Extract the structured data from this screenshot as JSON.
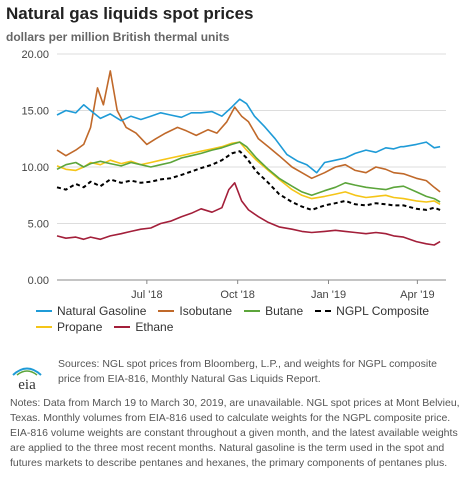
{
  "header": {
    "title": "Natural gas liquids spot prices",
    "subtitle": "dollars per million British thermal units"
  },
  "colors": {
    "natural_gasoline": "#1f9bd7",
    "isobutane": "#c0692a",
    "butane": "#5ca53b",
    "ngpl_composite": "#000000",
    "propane": "#f5c518",
    "ethane": "#a31f3a",
    "grid": "#dddddd",
    "axis": "#888888"
  },
  "footer": {
    "logo_text": "eia",
    "sources": "Sources: NGL spot prices from Bloomberg, L.P., and weights for NGPL composite price from EIA-816, Monthly Natural Gas Liquids Report.",
    "notes": "Notes: Data from March 19 to March 30, 2019, are unavailable. NGL spot prices at Mont Belvieu, Texas. Monthly volumes from EIA-816 used to calculate weights for the NGPL composite price. EIA-816 volume weights are constant throughout a given month, and the latest available weights are applied to the three most recent months. Natural gasoline is the term used in the spot and futures markets to describe pentanes and hexanes, the primary components of pentanes plus."
  },
  "chart_data": {
    "type": "line",
    "title": "Natural gas liquids spot prices",
    "ylabel": "dollars per million British thermal units",
    "ylim": [
      0,
      20
    ],
    "yticks": [
      "0.00",
      "5.00",
      "10.00",
      "15.00",
      "20.00"
    ],
    "xlim": [
      "2018-04-01",
      "2019-04-30"
    ],
    "xticks": [
      {
        "label": "Jul '18",
        "date": "2018-07-01"
      },
      {
        "label": "Oct '18",
        "date": "2018-10-01"
      },
      {
        "label": "Jan '19",
        "date": "2019-01-01"
      },
      {
        "label": "Apr '19",
        "date": "2019-04-01"
      }
    ],
    "grid": "horizontal",
    "legend_position": "bottom",
    "series": [
      {
        "name": "Natural Gasoline",
        "key": "natural_gasoline",
        "dashed": false,
        "points": [
          [
            "2018-04-01",
            14.6
          ],
          [
            "2018-04-10",
            15.0
          ],
          [
            "2018-04-20",
            14.8
          ],
          [
            "2018-04-28",
            15.5
          ],
          [
            "2018-05-05",
            15.0
          ],
          [
            "2018-05-15",
            14.3
          ],
          [
            "2018-05-25",
            14.7
          ],
          [
            "2018-06-05",
            14.1
          ],
          [
            "2018-06-15",
            14.5
          ],
          [
            "2018-06-25",
            14.2
          ],
          [
            "2018-07-05",
            14.5
          ],
          [
            "2018-07-15",
            14.8
          ],
          [
            "2018-07-25",
            14.6
          ],
          [
            "2018-08-05",
            14.4
          ],
          [
            "2018-08-15",
            14.8
          ],
          [
            "2018-08-25",
            14.8
          ],
          [
            "2018-09-05",
            14.9
          ],
          [
            "2018-09-15",
            14.5
          ],
          [
            "2018-09-25",
            15.3
          ],
          [
            "2018-10-03",
            16.0
          ],
          [
            "2018-10-10",
            15.6
          ],
          [
            "2018-10-18",
            14.5
          ],
          [
            "2018-10-28",
            13.6
          ],
          [
            "2018-11-08",
            12.5
          ],
          [
            "2018-11-20",
            11.1
          ],
          [
            "2018-12-01",
            10.5
          ],
          [
            "2018-12-10",
            10.2
          ],
          [
            "2018-12-20",
            9.5
          ],
          [
            "2018-12-28",
            10.4
          ],
          [
            "2019-01-08",
            10.6
          ],
          [
            "2019-01-18",
            10.8
          ],
          [
            "2019-01-28",
            11.2
          ],
          [
            "2019-02-08",
            11.5
          ],
          [
            "2019-02-18",
            11.3
          ],
          [
            "2019-02-28",
            11.7
          ],
          [
            "2019-03-08",
            11.6
          ],
          [
            "2019-03-15",
            11.8
          ],
          [
            "2019-03-18",
            11.8
          ],
          [
            "2019-03-31",
            12.0
          ],
          [
            "2019-04-10",
            12.2
          ],
          [
            "2019-04-18",
            11.7
          ],
          [
            "2019-04-24",
            11.8
          ]
        ]
      },
      {
        "name": "Isobutane",
        "key": "isobutane",
        "dashed": false,
        "points": [
          [
            "2018-04-01",
            11.5
          ],
          [
            "2018-04-10",
            11.0
          ],
          [
            "2018-04-20",
            11.5
          ],
          [
            "2018-04-28",
            12.0
          ],
          [
            "2018-05-05",
            13.5
          ],
          [
            "2018-05-12",
            17.0
          ],
          [
            "2018-05-18",
            15.5
          ],
          [
            "2018-05-25",
            18.5
          ],
          [
            "2018-06-01",
            15.0
          ],
          [
            "2018-06-10",
            13.5
          ],
          [
            "2018-06-20",
            13.0
          ],
          [
            "2018-07-01",
            12.0
          ],
          [
            "2018-07-10",
            12.5
          ],
          [
            "2018-07-20",
            13.0
          ],
          [
            "2018-08-01",
            13.5
          ],
          [
            "2018-08-10",
            13.2
          ],
          [
            "2018-08-20",
            12.8
          ],
          [
            "2018-09-01",
            13.3
          ],
          [
            "2018-09-10",
            13.0
          ],
          [
            "2018-09-20",
            14.0
          ],
          [
            "2018-09-28",
            15.3
          ],
          [
            "2018-10-05",
            14.5
          ],
          [
            "2018-10-12",
            14.0
          ],
          [
            "2018-10-22",
            12.5
          ],
          [
            "2018-11-01",
            11.8
          ],
          [
            "2018-11-12",
            11.0
          ],
          [
            "2018-11-25",
            10.0
          ],
          [
            "2018-12-05",
            9.5
          ],
          [
            "2018-12-15",
            9.0
          ],
          [
            "2018-12-28",
            9.5
          ],
          [
            "2019-01-08",
            10.0
          ],
          [
            "2019-01-18",
            10.2
          ],
          [
            "2019-01-28",
            9.7
          ],
          [
            "2019-02-08",
            9.5
          ],
          [
            "2019-02-18",
            10.0
          ],
          [
            "2019-02-28",
            9.8
          ],
          [
            "2019-03-08",
            9.5
          ],
          [
            "2019-03-18",
            9.4
          ],
          [
            "2019-03-31",
            9.0
          ],
          [
            "2019-04-10",
            8.8
          ],
          [
            "2019-04-18",
            8.2
          ],
          [
            "2019-04-24",
            7.8
          ]
        ]
      },
      {
        "name": "Butane",
        "key": "butane",
        "dashed": false,
        "points": [
          [
            "2018-04-01",
            9.8
          ],
          [
            "2018-04-10",
            10.2
          ],
          [
            "2018-04-20",
            10.4
          ],
          [
            "2018-04-28",
            10.0
          ],
          [
            "2018-05-05",
            10.3
          ],
          [
            "2018-05-15",
            10.5
          ],
          [
            "2018-05-25",
            10.3
          ],
          [
            "2018-06-05",
            10.1
          ],
          [
            "2018-06-15",
            10.4
          ],
          [
            "2018-06-25",
            10.2
          ],
          [
            "2018-07-05",
            10.0
          ],
          [
            "2018-07-15",
            10.2
          ],
          [
            "2018-07-25",
            10.4
          ],
          [
            "2018-08-05",
            10.8
          ],
          [
            "2018-08-15",
            11.0
          ],
          [
            "2018-08-25",
            11.2
          ],
          [
            "2018-09-05",
            11.5
          ],
          [
            "2018-09-15",
            11.7
          ],
          [
            "2018-09-25",
            12.0
          ],
          [
            "2018-10-03",
            12.2
          ],
          [
            "2018-10-10",
            11.8
          ],
          [
            "2018-10-20",
            10.8
          ],
          [
            "2018-11-01",
            9.8
          ],
          [
            "2018-11-12",
            9.0
          ],
          [
            "2018-11-25",
            8.3
          ],
          [
            "2018-12-05",
            7.8
          ],
          [
            "2018-12-15",
            7.5
          ],
          [
            "2018-12-28",
            7.9
          ],
          [
            "2019-01-08",
            8.2
          ],
          [
            "2019-01-18",
            8.6
          ],
          [
            "2019-01-28",
            8.4
          ],
          [
            "2019-02-08",
            8.2
          ],
          [
            "2019-02-18",
            8.1
          ],
          [
            "2019-02-28",
            8.0
          ],
          [
            "2019-03-08",
            8.2
          ],
          [
            "2019-03-18",
            8.3
          ],
          [
            "2019-03-31",
            7.8
          ],
          [
            "2019-04-10",
            7.4
          ],
          [
            "2019-04-18",
            7.2
          ],
          [
            "2019-04-24",
            6.9
          ]
        ]
      },
      {
        "name": "NGPL Composite",
        "key": "ngpl_composite",
        "dashed": true,
        "points": [
          [
            "2018-04-01",
            8.2
          ],
          [
            "2018-04-10",
            8.0
          ],
          [
            "2018-04-20",
            8.5
          ],
          [
            "2018-04-28",
            8.2
          ],
          [
            "2018-05-05",
            8.7
          ],
          [
            "2018-05-15",
            8.3
          ],
          [
            "2018-05-25",
            8.9
          ],
          [
            "2018-06-05",
            8.6
          ],
          [
            "2018-06-15",
            8.8
          ],
          [
            "2018-06-25",
            8.6
          ],
          [
            "2018-07-05",
            8.7
          ],
          [
            "2018-07-15",
            8.9
          ],
          [
            "2018-07-25",
            9.0
          ],
          [
            "2018-08-05",
            9.3
          ],
          [
            "2018-08-15",
            9.6
          ],
          [
            "2018-08-25",
            9.9
          ],
          [
            "2018-09-05",
            10.2
          ],
          [
            "2018-09-15",
            10.6
          ],
          [
            "2018-09-25",
            11.2
          ],
          [
            "2018-10-03",
            11.4
          ],
          [
            "2018-10-10",
            10.8
          ],
          [
            "2018-10-20",
            9.6
          ],
          [
            "2018-11-01",
            8.6
          ],
          [
            "2018-11-12",
            7.6
          ],
          [
            "2018-11-25",
            6.9
          ],
          [
            "2018-12-05",
            6.5
          ],
          [
            "2018-12-15",
            6.2
          ],
          [
            "2018-12-28",
            6.6
          ],
          [
            "2019-01-08",
            6.8
          ],
          [
            "2019-01-18",
            7.0
          ],
          [
            "2019-01-28",
            6.7
          ],
          [
            "2019-02-08",
            6.6
          ],
          [
            "2019-02-18",
            6.8
          ],
          [
            "2019-02-28",
            6.7
          ],
          [
            "2019-03-08",
            6.6
          ],
          [
            "2019-03-18",
            6.6
          ],
          [
            "2019-03-31",
            6.3
          ],
          [
            "2019-04-10",
            6.2
          ],
          [
            "2019-04-18",
            6.4
          ],
          [
            "2019-04-24",
            6.2
          ]
        ]
      },
      {
        "name": "Propane",
        "key": "propane",
        "dashed": false,
        "points": [
          [
            "2018-04-01",
            10.1
          ],
          [
            "2018-04-10",
            9.8
          ],
          [
            "2018-04-20",
            9.7
          ],
          [
            "2018-04-28",
            10.0
          ],
          [
            "2018-05-05",
            10.4
          ],
          [
            "2018-05-15",
            10.2
          ],
          [
            "2018-05-25",
            10.6
          ],
          [
            "2018-06-05",
            10.3
          ],
          [
            "2018-06-15",
            10.5
          ],
          [
            "2018-06-25",
            10.2
          ],
          [
            "2018-07-05",
            10.4
          ],
          [
            "2018-07-15",
            10.6
          ],
          [
            "2018-07-25",
            10.8
          ],
          [
            "2018-08-05",
            11.0
          ],
          [
            "2018-08-15",
            11.2
          ],
          [
            "2018-08-25",
            11.4
          ],
          [
            "2018-09-05",
            11.6
          ],
          [
            "2018-09-15",
            11.8
          ],
          [
            "2018-09-25",
            12.1
          ],
          [
            "2018-10-03",
            12.2
          ],
          [
            "2018-10-10",
            11.5
          ],
          [
            "2018-10-20",
            10.6
          ],
          [
            "2018-11-01",
            9.7
          ],
          [
            "2018-11-12",
            8.9
          ],
          [
            "2018-11-25",
            8.0
          ],
          [
            "2018-12-05",
            7.5
          ],
          [
            "2018-12-15",
            7.2
          ],
          [
            "2018-12-28",
            7.4
          ],
          [
            "2019-01-08",
            7.6
          ],
          [
            "2019-01-18",
            7.8
          ],
          [
            "2019-01-28",
            7.5
          ],
          [
            "2019-02-08",
            7.3
          ],
          [
            "2019-02-18",
            7.4
          ],
          [
            "2019-02-28",
            7.5
          ],
          [
            "2019-03-08",
            7.3
          ],
          [
            "2019-03-18",
            7.2
          ],
          [
            "2019-03-31",
            7.0
          ],
          [
            "2019-04-10",
            6.9
          ],
          [
            "2019-04-18",
            7.0
          ],
          [
            "2019-04-24",
            6.7
          ]
        ]
      },
      {
        "name": "Ethane",
        "key": "ethane",
        "dashed": false,
        "points": [
          [
            "2018-04-01",
            3.9
          ],
          [
            "2018-04-10",
            3.7
          ],
          [
            "2018-04-20",
            3.8
          ],
          [
            "2018-04-28",
            3.6
          ],
          [
            "2018-05-05",
            3.8
          ],
          [
            "2018-05-15",
            3.6
          ],
          [
            "2018-05-25",
            3.9
          ],
          [
            "2018-06-05",
            4.1
          ],
          [
            "2018-06-15",
            4.3
          ],
          [
            "2018-06-25",
            4.5
          ],
          [
            "2018-07-05",
            4.6
          ],
          [
            "2018-07-15",
            5.0
          ],
          [
            "2018-07-25",
            5.2
          ],
          [
            "2018-08-05",
            5.6
          ],
          [
            "2018-08-15",
            5.9
          ],
          [
            "2018-08-25",
            6.3
          ],
          [
            "2018-09-05",
            6.0
          ],
          [
            "2018-09-15",
            6.4
          ],
          [
            "2018-09-22",
            8.0
          ],
          [
            "2018-09-28",
            8.6
          ],
          [
            "2018-10-05",
            7.0
          ],
          [
            "2018-10-12",
            6.2
          ],
          [
            "2018-10-22",
            5.6
          ],
          [
            "2018-11-01",
            5.1
          ],
          [
            "2018-11-12",
            4.7
          ],
          [
            "2018-11-25",
            4.5
          ],
          [
            "2018-12-05",
            4.3
          ],
          [
            "2018-12-15",
            4.2
          ],
          [
            "2018-12-28",
            4.3
          ],
          [
            "2019-01-08",
            4.4
          ],
          [
            "2019-01-18",
            4.3
          ],
          [
            "2019-01-28",
            4.2
          ],
          [
            "2019-02-08",
            4.1
          ],
          [
            "2019-02-18",
            4.2
          ],
          [
            "2019-02-28",
            4.1
          ],
          [
            "2019-03-08",
            3.9
          ],
          [
            "2019-03-18",
            3.8
          ],
          [
            "2019-03-31",
            3.4
          ],
          [
            "2019-04-10",
            3.2
          ],
          [
            "2019-04-18",
            3.1
          ],
          [
            "2019-04-24",
            3.4
          ]
        ]
      }
    ]
  }
}
